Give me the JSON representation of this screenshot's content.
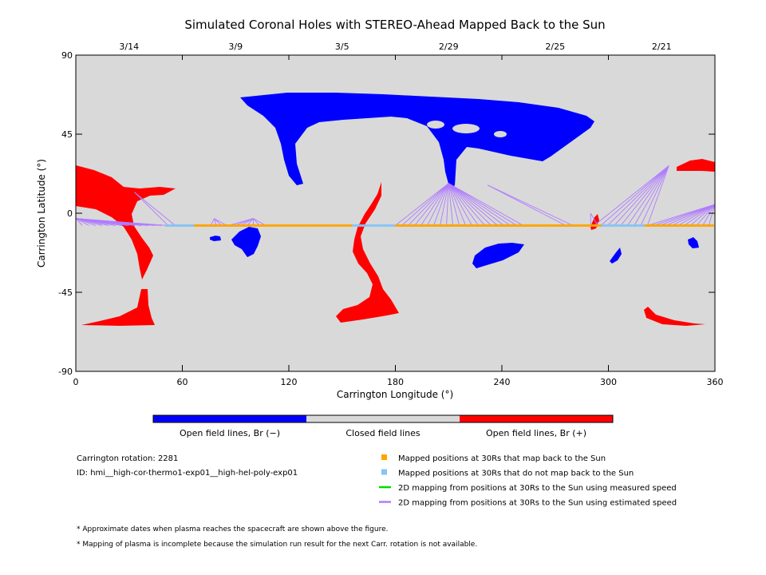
{
  "chart_data": {
    "type": "map",
    "title": "Simulated Coronal Holes with STEREO-Ahead Mapped Back to the Sun",
    "xlabel": "Carrington Longitude (°)",
    "ylabel": "Carrington Latitude (°)",
    "xlim": [
      0,
      360
    ],
    "ylim": [
      -90,
      90
    ],
    "x_ticks": [
      "0",
      "60",
      "120",
      "180",
      "240",
      "300",
      "360"
    ],
    "x_tick_values": [
      0,
      60,
      120,
      180,
      240,
      300,
      360
    ],
    "y_ticks": [
      "90",
      "45",
      "0",
      "-45",
      "-90"
    ],
    "y_tick_values": [
      90,
      45,
      0,
      -45,
      -90
    ],
    "top_dates": [
      {
        "label": "3/14",
        "lon": 30
      },
      {
        "label": "3/9",
        "lon": 90
      },
      {
        "label": "3/5",
        "lon": 150
      },
      {
        "label": "2/29",
        "lon": 210
      },
      {
        "label": "2/25",
        "lon": 270
      },
      {
        "label": "2/21",
        "lon": 330
      }
    ],
    "colors": {
      "background": "#d9d9d9",
      "negative": "#0000ff",
      "positive": "#ff0000",
      "mapped_back": "#ffa500",
      "not_mapped": "#87c4f5",
      "measured_speed": "#00dd00",
      "estimated_speed": "#b07cff"
    },
    "mapped_latitude": -7,
    "mapped_lon_range": [
      51,
      360
    ],
    "not_mapped_lon_ranges": [
      [
        51,
        66
      ],
      [
        155,
        180
      ],
      [
        296,
        320
      ]
    ],
    "estimated_speed_fans": [
      {
        "sun": [
          0,
          -3
        ],
        "to_lon": [
          0,
          52
        ]
      },
      {
        "sun": [
          33,
          12
        ],
        "to_lon": [
          52,
          56
        ]
      },
      {
        "sun": [
          78,
          -3
        ],
        "to_lon": [
          76,
          85
        ]
      },
      {
        "sun": [
          100,
          -3
        ],
        "to_lon": [
          86,
          107
        ]
      },
      {
        "sun": [
          210,
          17
        ],
        "to_lon": [
          180,
          252
        ]
      },
      {
        "sun": [
          232,
          16
        ],
        "to_lon": [
          276,
          280
        ]
      },
      {
        "sun": [
          290,
          0
        ],
        "to_lon": [
          290,
          294
        ]
      },
      {
        "sun": [
          334,
          27
        ],
        "to_lon": [
          292,
          322
        ]
      },
      {
        "sun": [
          360,
          5
        ],
        "to_lon": [
          322,
          360
        ]
      }
    ]
  },
  "colorbar": {
    "labels": [
      "Open field lines, Br (−)",
      "Closed field lines",
      "Open field lines, Br (+)"
    ]
  },
  "info": {
    "rotation": "Carrington rotation: 2281",
    "id": "ID: hmi__high-cor-thermo1-exp01__high-hel-poly-exp01"
  },
  "legend": [
    {
      "label": "Mapped positions at 30Rs that map back to the Sun",
      "kind": "square",
      "color": "#ffa500"
    },
    {
      "label": "Mapped positions at 30Rs that do not map back to the Sun",
      "kind": "square",
      "color": "#87c4f5"
    },
    {
      "label": "2D mapping from positions at 30Rs to the Sun using measured speed",
      "kind": "line",
      "color": "#00dd00"
    },
    {
      "label": "2D mapping from positions at 30Rs to the Sun using estimated speed",
      "kind": "line",
      "color": "#b07cff"
    }
  ],
  "footnotes": [
    "* Approximate dates when plasma reaches the spacecraft are shown above the figure.",
    "* Mapping of plasma is incomplete because the simulation run result for the next Carr. rotation is not available."
  ]
}
